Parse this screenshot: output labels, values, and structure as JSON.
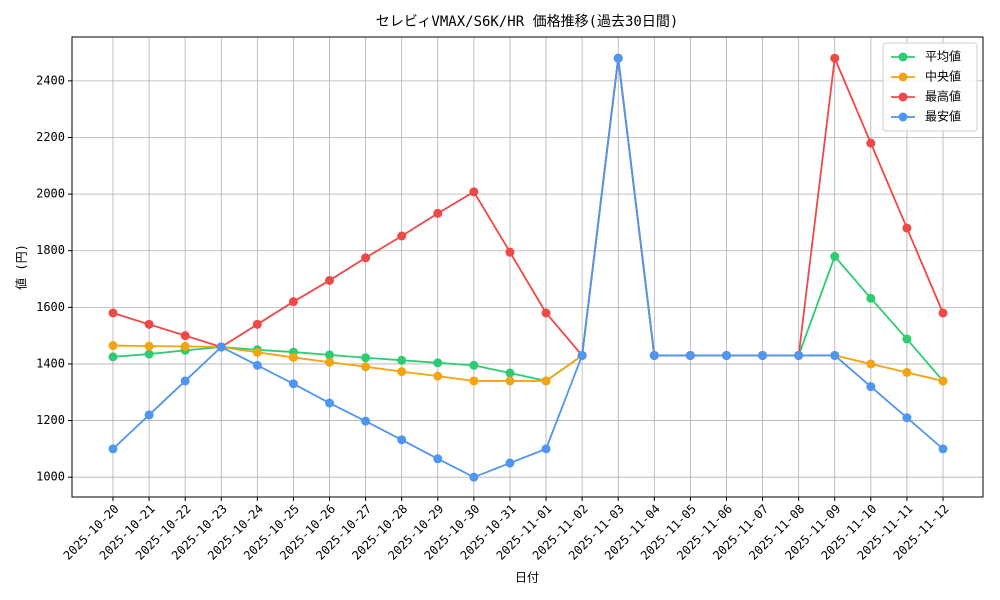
{
  "chart_data": {
    "type": "line",
    "title": "セレビィVMAX/S6K/HR 価格推移(過去30日間)",
    "x_label": "日付",
    "y_label": "値 (円)",
    "categories": [
      "2025-10-20",
      "2025-10-21",
      "2025-10-22",
      "2025-10-23",
      "2025-10-24",
      "2025-10-25",
      "2025-10-26",
      "2025-10-27",
      "2025-10-28",
      "2025-10-29",
      "2025-10-30",
      "2025-10-31",
      "2025-11-01",
      "2025-11-02",
      "2025-11-03",
      "2025-11-04",
      "2025-11-05",
      "2025-11-06",
      "2025-11-07",
      "2025-11-08",
      "2025-11-09",
      "2025-11-10",
      "2025-11-11",
      "2025-11-12"
    ],
    "series": [
      {
        "name": "平均値",
        "color": "#2ecc71",
        "values": [
          1425,
          1435,
          1448,
          1460,
          1450,
          1442,
          1432,
          1422,
          1413,
          1404,
          1395,
          1368,
          1340,
          1430,
          2480,
          1430,
          1430,
          1430,
          1430,
          1430,
          1780,
          1632,
          1488,
          1340
        ]
      },
      {
        "name": "中央値",
        "color": "#f5a30f",
        "values": [
          1465,
          1463,
          1462,
          1460,
          1441,
          1423,
          1406,
          1390,
          1373,
          1357,
          1340,
          1340,
          1340,
          1430,
          2480,
          1430,
          1430,
          1430,
          1430,
          1430,
          1430,
          1400,
          1370,
          1340
        ]
      },
      {
        "name": "最高値",
        "color": "#ef4848",
        "values": [
          1580,
          1540,
          1500,
          1460,
          1540,
          1620,
          1695,
          1775,
          1852,
          1932,
          2008,
          1795,
          1580,
          1430,
          2480,
          1430,
          1430,
          1430,
          1430,
          1430,
          2480,
          2180,
          1880,
          1580
        ]
      },
      {
        "name": "最安値",
        "color": "#4e96f0",
        "values": [
          1100,
          1220,
          1340,
          1460,
          1395,
          1330,
          1262,
          1198,
          1132,
          1065,
          1000,
          1050,
          1100,
          1430,
          2480,
          1430,
          1430,
          1430,
          1430,
          1430,
          1430,
          1320,
          1210,
          1100
        ]
      }
    ],
    "ylim": [
      930,
      2555
    ],
    "yticks": [
      1000,
      1200,
      1400,
      1600,
      1800,
      2000,
      2200,
      2400
    ],
    "grid": true,
    "legend": "upper right"
  }
}
